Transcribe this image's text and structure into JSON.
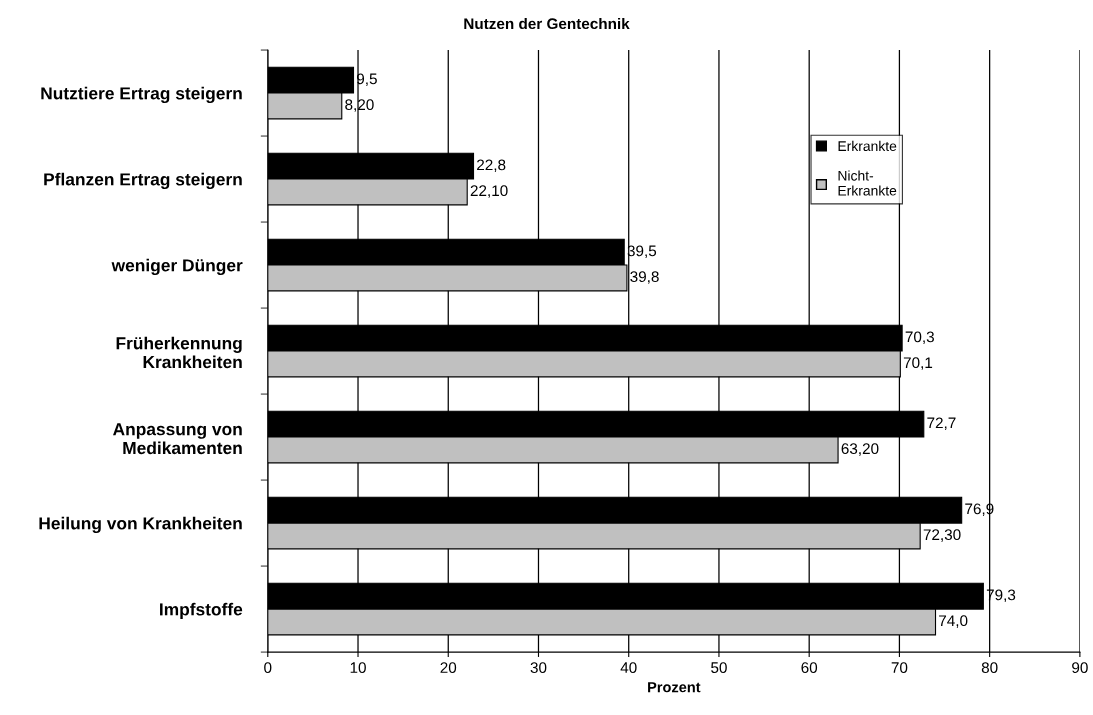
{
  "chart_data": {
    "type": "bar",
    "orientation": "horizontal",
    "title": "Nutzen der Gentechnik",
    "xlabel": "Prozent",
    "categories": [
      "Nutztiere Ertrag steigern",
      "Pflanzen Ertrag steigern",
      "weniger Dünger",
      "Früherkennung\nKrankheiten",
      "Anpassung von\nMedikamenten",
      "Heilung von Krankheiten",
      "Impfstoffe"
    ],
    "series": [
      {
        "name": "Erkrankte",
        "color": "#000000",
        "values": [
          9.5,
          22.8,
          39.5,
          70.3,
          72.7,
          76.9,
          79.3
        ],
        "value_labels": [
          "9,5",
          "22,8",
          "39,5",
          "70,3",
          "72,7",
          "76,9",
          "79,3"
        ]
      },
      {
        "name": "Nicht-\nErkrankte",
        "color": "#c0c0c0",
        "values": [
          8.2,
          22.1,
          39.8,
          70.1,
          63.2,
          72.3,
          74.0
        ],
        "value_labels": [
          "8,20",
          "22,10",
          "39,8",
          "70,1",
          "63,20",
          "72,30",
          "74,0"
        ]
      }
    ],
    "xlim": [
      0,
      90
    ],
    "xticks": [
      0,
      10,
      20,
      30,
      40,
      50,
      60,
      70,
      80,
      90
    ],
    "grid": "x",
    "legend": "top right"
  }
}
